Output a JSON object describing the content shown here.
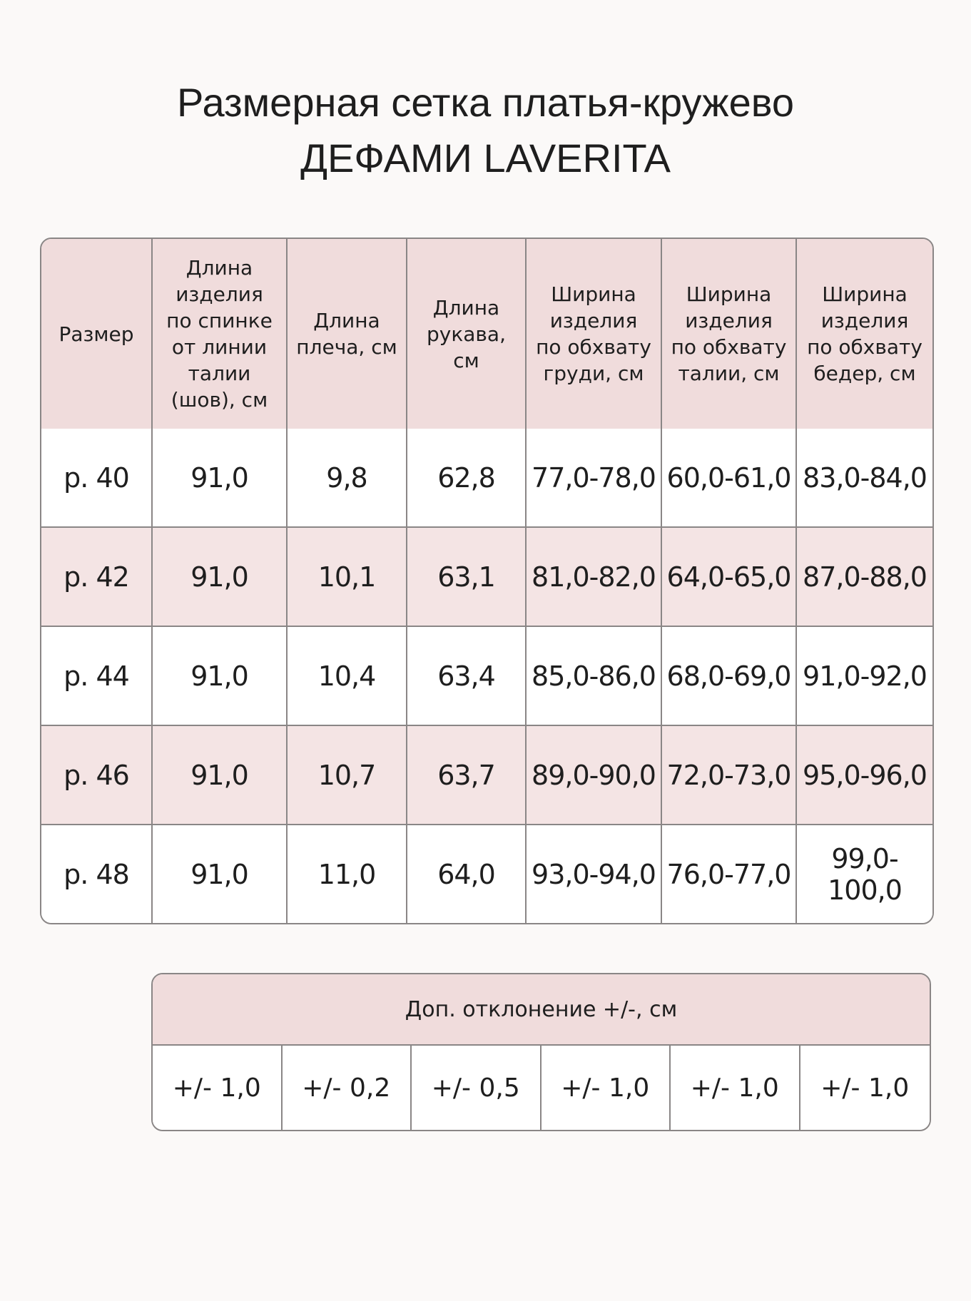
{
  "title": {
    "line1": "Размерная сетка платья-кружево",
    "line2": "ДЕФАМИ LAVERITA"
  },
  "size_table": {
    "headers": [
      "Размер",
      "Длина изделия по спинке от линии талии (шов), см",
      "Длина плеча, см",
      "Длина рукава, см",
      "Ширина изделия по обхвату груди, см",
      "Ширина изделия по обхвату талии, см",
      "Ширина изделия по обхвату бедер, см"
    ],
    "rows": [
      [
        "р. 40",
        "91,0",
        "9,8",
        "62,8",
        "77,0-78,0",
        "60,0-61,0",
        "83,0-84,0"
      ],
      [
        "р. 42",
        "91,0",
        "10,1",
        "63,1",
        "81,0-82,0",
        "64,0-65,0",
        "87,0-88,0"
      ],
      [
        "р. 44",
        "91,0",
        "10,4",
        "63,4",
        "85,0-86,0",
        "68,0-69,0",
        "91,0-92,0"
      ],
      [
        "р. 46",
        "91,0",
        "10,7",
        "63,7",
        "89,0-90,0",
        "72,0-73,0",
        "95,0-96,0"
      ],
      [
        "р. 48",
        "91,0",
        "11,0",
        "64,0",
        "93,0-94,0",
        "76,0-77,0",
        "99,0-100,0"
      ]
    ]
  },
  "tolerance_table": {
    "header": "Доп. отклонение +/-, см",
    "values": [
      "+/- 1,0",
      "+/- 0,2",
      "+/- 0,5",
      "+/- 1,0",
      "+/- 1,0",
      "+/- 1,0"
    ]
  },
  "colors": {
    "header_bg": "#f0dcdc",
    "alt_row_bg": "#f4e4e4",
    "border": "#8a8686",
    "background": "#fbf9f8"
  }
}
